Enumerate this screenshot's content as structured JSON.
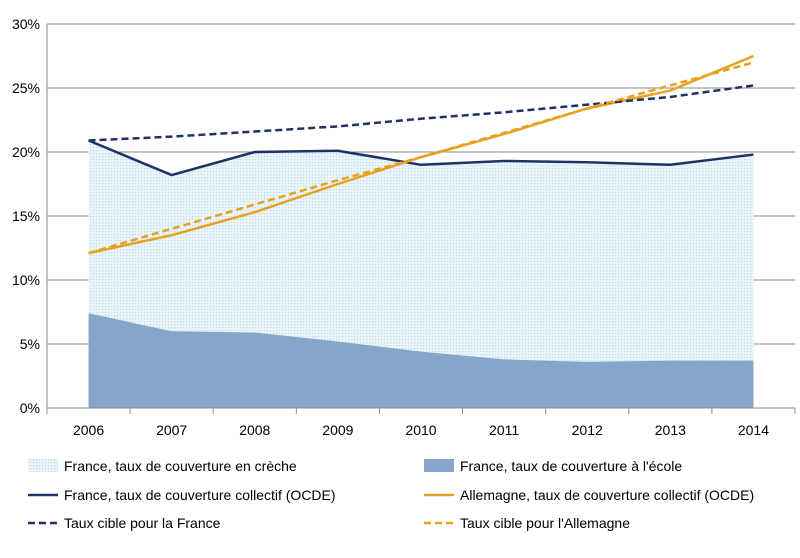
{
  "chart_data": {
    "type": "line",
    "categories": [
      "2006",
      "2007",
      "2008",
      "2009",
      "2010",
      "2011",
      "2012",
      "2013",
      "2014"
    ],
    "ylim": [
      0,
      30
    ],
    "yticks": [
      0,
      5,
      10,
      15,
      20,
      25,
      30
    ],
    "ytick_labels": [
      "0%",
      "5%",
      "10%",
      "15%",
      "20%",
      "25%",
      "30%"
    ],
    "grid": true,
    "legend_position": "bottom",
    "series": [
      {
        "id": "creche",
        "name": "France, taux de couverture en crèche",
        "kind": "area",
        "color": "#d9edf4",
        "values": [
          20.9,
          18.2,
          20.0,
          20.1,
          19.0,
          19.3,
          19.2,
          19.0,
          19.8
        ]
      },
      {
        "id": "ecole",
        "name": "France, taux de couverture à l'école",
        "kind": "area",
        "color": "#87a5c9",
        "values": [
          7.4,
          6.0,
          5.9,
          5.2,
          4.4,
          3.8,
          3.6,
          3.7,
          3.7
        ]
      },
      {
        "id": "fr_collectif",
        "name": "France, taux de couverture collectif (OCDE)",
        "kind": "line",
        "color": "#1f3266",
        "values": [
          20.9,
          18.2,
          20.0,
          20.1,
          19.0,
          19.3,
          19.2,
          19.0,
          19.8
        ]
      },
      {
        "id": "de_collectif",
        "name": "Allemagne, taux de couverture collectif (OCDE)",
        "kind": "line",
        "color": "#e8a020",
        "values": [
          12.1,
          13.5,
          15.3,
          17.5,
          19.6,
          21.4,
          23.4,
          24.8,
          27.5
        ]
      },
      {
        "id": "fr_cible",
        "name": "Taux cible pour la France",
        "kind": "dashed",
        "color": "#1f3266",
        "values": [
          20.9,
          21.2,
          21.6,
          22.0,
          22.6,
          23.1,
          23.7,
          24.3,
          25.2
        ]
      },
      {
        "id": "de_cible",
        "name": "Taux cible pour l'Allemagne",
        "kind": "dashed",
        "color": "#e8a020",
        "values": [
          12.1,
          14.0,
          15.9,
          17.8,
          19.6,
          21.5,
          23.4,
          25.2,
          27.0
        ]
      }
    ]
  }
}
